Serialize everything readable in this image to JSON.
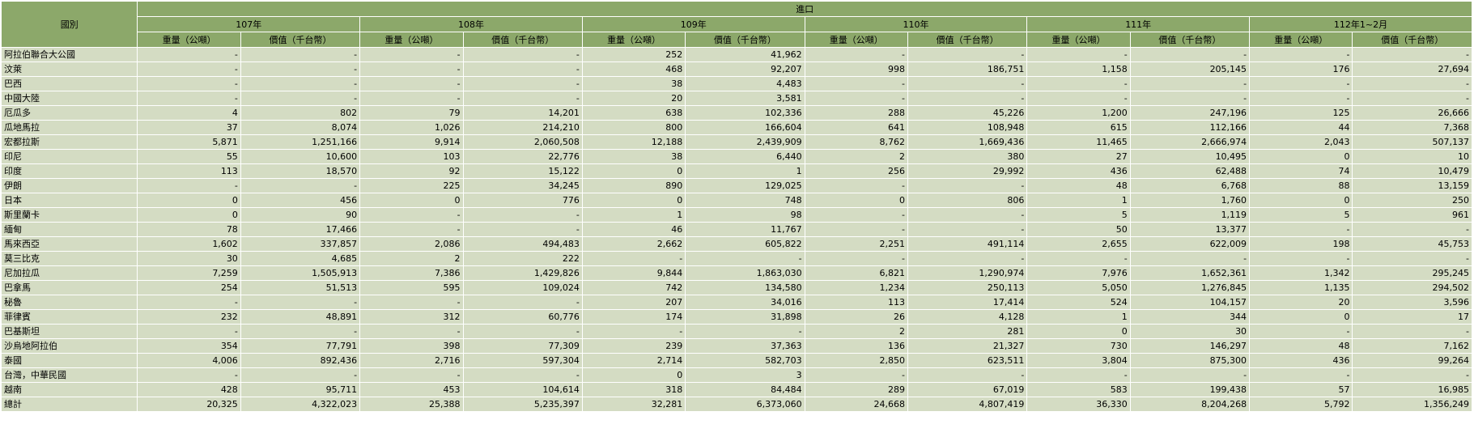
{
  "header": {
    "country_col": "國別",
    "group": "進口",
    "years": [
      "107年",
      "108年",
      "109年",
      "110年",
      "111年",
      "112年1~2月"
    ],
    "weight_label": "重量（公噸）",
    "value_label": "價值（千台幣）"
  },
  "rows": [
    {
      "name": "阿拉伯聯合大公國",
      "v": [
        "-",
        "-",
        "-",
        "-",
        "252",
        "41,962",
        "-",
        "-",
        "-",
        "-",
        "-",
        "-"
      ]
    },
    {
      "name": "汶萊",
      "v": [
        "-",
        "-",
        "-",
        "-",
        "468",
        "92,207",
        "998",
        "186,751",
        "1,158",
        "205,145",
        "176",
        "27,694"
      ]
    },
    {
      "name": "巴西",
      "v": [
        "-",
        "-",
        "-",
        "-",
        "38",
        "4,483",
        "-",
        "-",
        "-",
        "-",
        "-",
        "-"
      ]
    },
    {
      "name": "中國大陸",
      "v": [
        "-",
        "-",
        "-",
        "-",
        "20",
        "3,581",
        "-",
        "-",
        "-",
        "-",
        "-",
        "-"
      ]
    },
    {
      "name": "厄瓜多",
      "v": [
        "4",
        "802",
        "79",
        "14,201",
        "638",
        "102,336",
        "288",
        "45,226",
        "1,200",
        "247,196",
        "125",
        "26,666"
      ]
    },
    {
      "name": "瓜地馬拉",
      "v": [
        "37",
        "8,074",
        "1,026",
        "214,210",
        "800",
        "166,604",
        "641",
        "108,948",
        "615",
        "112,166",
        "44",
        "7,368"
      ]
    },
    {
      "name": "宏都拉斯",
      "v": [
        "5,871",
        "1,251,166",
        "9,914",
        "2,060,508",
        "12,188",
        "2,439,909",
        "8,762",
        "1,669,436",
        "11,465",
        "2,666,974",
        "2,043",
        "507,137"
      ]
    },
    {
      "name": "印尼",
      "v": [
        "55",
        "10,600",
        "103",
        "22,776",
        "38",
        "6,440",
        "2",
        "380",
        "27",
        "10,495",
        "0",
        "10"
      ]
    },
    {
      "name": "印度",
      "v": [
        "113",
        "18,570",
        "92",
        "15,122",
        "0",
        "1",
        "256",
        "29,992",
        "436",
        "62,488",
        "74",
        "10,479"
      ]
    },
    {
      "name": "伊朗",
      "v": [
        "-",
        "-",
        "225",
        "34,245",
        "890",
        "129,025",
        "-",
        "-",
        "48",
        "6,768",
        "88",
        "13,159"
      ]
    },
    {
      "name": "日本",
      "v": [
        "0",
        "456",
        "0",
        "776",
        "0",
        "748",
        "0",
        "806",
        "1",
        "1,760",
        "0",
        "250"
      ]
    },
    {
      "name": "斯里蘭卡",
      "v": [
        "0",
        "90",
        "-",
        "-",
        "1",
        "98",
        "-",
        "-",
        "5",
        "1,119",
        "5",
        "961"
      ]
    },
    {
      "name": "緬甸",
      "v": [
        "78",
        "17,466",
        "-",
        "-",
        "46",
        "11,767",
        "-",
        "-",
        "50",
        "13,377",
        "-",
        "-"
      ]
    },
    {
      "name": "馬來西亞",
      "v": [
        "1,602",
        "337,857",
        "2,086",
        "494,483",
        "2,662",
        "605,822",
        "2,251",
        "491,114",
        "2,655",
        "622,009",
        "198",
        "45,753"
      ]
    },
    {
      "name": "莫三比克",
      "v": [
        "30",
        "4,685",
        "2",
        "222",
        "-",
        "-",
        "-",
        "-",
        "-",
        "-",
        "-",
        "-"
      ]
    },
    {
      "name": "尼加拉瓜",
      "v": [
        "7,259",
        "1,505,913",
        "7,386",
        "1,429,826",
        "9,844",
        "1,863,030",
        "6,821",
        "1,290,974",
        "7,976",
        "1,652,361",
        "1,342",
        "295,245"
      ]
    },
    {
      "name": "巴拿馬",
      "v": [
        "254",
        "51,513",
        "595",
        "109,024",
        "742",
        "134,580",
        "1,234",
        "250,113",
        "5,050",
        "1,276,845",
        "1,135",
        "294,502"
      ]
    },
    {
      "name": "秘魯",
      "v": [
        "-",
        "-",
        "-",
        "-",
        "207",
        "34,016",
        "113",
        "17,414",
        "524",
        "104,157",
        "20",
        "3,596"
      ]
    },
    {
      "name": "菲律賓",
      "v": [
        "232",
        "48,891",
        "312",
        "60,776",
        "174",
        "31,898",
        "26",
        "4,128",
        "1",
        "344",
        "0",
        "17"
      ]
    },
    {
      "name": "巴基斯坦",
      "v": [
        "-",
        "-",
        "-",
        "-",
        "-",
        "-",
        "2",
        "281",
        "0",
        "30",
        "-",
        "-"
      ]
    },
    {
      "name": "沙烏地阿拉伯",
      "v": [
        "354",
        "77,791",
        "398",
        "77,309",
        "239",
        "37,363",
        "136",
        "21,327",
        "730",
        "146,297",
        "48",
        "7,162"
      ]
    },
    {
      "name": "泰國",
      "v": [
        "4,006",
        "892,436",
        "2,716",
        "597,304",
        "2,714",
        "582,703",
        "2,850",
        "623,511",
        "3,804",
        "875,300",
        "436",
        "99,264"
      ]
    },
    {
      "name": "台灣，中華民國",
      "v": [
        "-",
        "-",
        "-",
        "-",
        "0",
        "3",
        "-",
        "-",
        "-",
        "-",
        "-",
        "-"
      ]
    },
    {
      "name": "越南",
      "v": [
        "428",
        "95,711",
        "453",
        "104,614",
        "318",
        "84,484",
        "289",
        "67,019",
        "583",
        "199,438",
        "57",
        "16,985"
      ]
    },
    {
      "name": "總計",
      "v": [
        "20,325",
        "4,322,023",
        "25,388",
        "5,235,397",
        "32,281",
        "6,373,060",
        "24,668",
        "4,807,419",
        "36,330",
        "8,204,268",
        "5,792",
        "1,356,249"
      ]
    }
  ]
}
